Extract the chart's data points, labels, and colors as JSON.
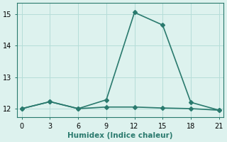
{
  "x": [
    0,
    3,
    6,
    9,
    12,
    15,
    18,
    21
  ],
  "y_main": [
    12.0,
    12.22,
    12.0,
    12.28,
    15.05,
    14.65,
    12.2,
    11.95
  ],
  "y_flat": [
    12.0,
    12.22,
    12.0,
    12.05,
    12.05,
    12.02,
    12.0,
    11.95
  ],
  "line_color": "#2a7a6e",
  "bg_color": "#ddf2ee",
  "grid_color": "#b5ddd8",
  "spine_color": "#2a7a6e",
  "xlabel": "Humidex (Indice chaleur)",
  "xlim": [
    -0.5,
    21.5
  ],
  "ylim": [
    11.72,
    15.35
  ],
  "xticks": [
    0,
    3,
    6,
    9,
    12,
    15,
    18,
    21
  ],
  "yticks": [
    12,
    13,
    14,
    15
  ],
  "marker": "D",
  "markersize": 3,
  "linewidth": 1.2,
  "xlabel_fontsize": 7.5,
  "tick_fontsize": 7
}
